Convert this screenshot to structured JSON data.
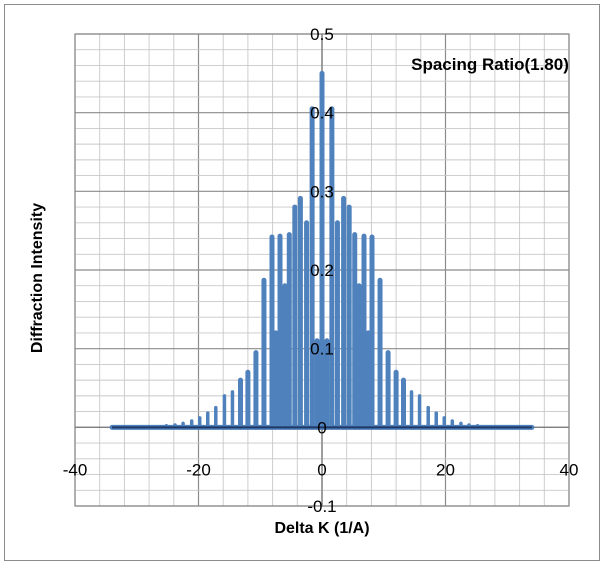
{
  "chart_data": {
    "type": "line",
    "title": "Spacing Ratio(1.80)",
    "xlabel": "Delta K  (1/A)",
    "ylabel": "Diffraction Intensity",
    "xlim": [
      -40,
      40
    ],
    "ylim": [
      -0.1,
      0.5
    ],
    "x_ticks": [
      -40,
      -20,
      0,
      20,
      40
    ],
    "y_ticks": [
      -0.1,
      0,
      0.1,
      0.2,
      0.3,
      0.4,
      0.5
    ],
    "grid": true,
    "legend": "none",
    "series_color": "#4f81bd",
    "baseline_color": "#1f3864",
    "x_range": [
      -34,
      34
    ],
    "peaks": [
      {
        "x": 0.0,
        "y": 0.45
      },
      {
        "x": 1.6,
        "y": 0.405
      },
      {
        "x": -1.6,
        "y": 0.405
      },
      {
        "x": 3.5,
        "y": 0.291
      },
      {
        "x": -3.5,
        "y": 0.291
      },
      {
        "x": 4.4,
        "y": 0.28
      },
      {
        "x": -4.4,
        "y": 0.28
      },
      {
        "x": 5.3,
        "y": 0.245
      },
      {
        "x": -5.3,
        "y": 0.245
      },
      {
        "x": 6.8,
        "y": 0.243
      },
      {
        "x": -6.8,
        "y": 0.243
      },
      {
        "x": 8.1,
        "y": 0.242
      },
      {
        "x": -8.1,
        "y": 0.242
      },
      {
        "x": 2.5,
        "y": 0.26
      },
      {
        "x": -2.5,
        "y": 0.26
      },
      {
        "x": 6.0,
        "y": 0.18
      },
      {
        "x": -6.0,
        "y": 0.18
      },
      {
        "x": 0.8,
        "y": 0.11
      },
      {
        "x": -0.8,
        "y": 0.11
      },
      {
        "x": 9.4,
        "y": 0.187
      },
      {
        "x": -9.4,
        "y": 0.187
      },
      {
        "x": 7.5,
        "y": 0.12
      },
      {
        "x": -7.5,
        "y": 0.12
      },
      {
        "x": 10.7,
        "y": 0.095
      },
      {
        "x": -10.7,
        "y": 0.095
      },
      {
        "x": 12.0,
        "y": 0.07
      },
      {
        "x": -12.0,
        "y": 0.07
      },
      {
        "x": 13.2,
        "y": 0.06
      },
      {
        "x": -13.2,
        "y": 0.06
      },
      {
        "x": 14.5,
        "y": 0.045
      },
      {
        "x": -14.5,
        "y": 0.045
      },
      {
        "x": 15.8,
        "y": 0.04
      },
      {
        "x": -15.8,
        "y": 0.04
      },
      {
        "x": 17.2,
        "y": 0.025
      },
      {
        "x": -17.2,
        "y": 0.025
      },
      {
        "x": 18.5,
        "y": 0.018
      },
      {
        "x": -18.5,
        "y": 0.018
      },
      {
        "x": 19.8,
        "y": 0.012
      },
      {
        "x": -19.8,
        "y": 0.012
      },
      {
        "x": 21.1,
        "y": 0.008
      },
      {
        "x": -21.1,
        "y": 0.008
      },
      {
        "x": 22.5,
        "y": 0.005
      },
      {
        "x": -22.5,
        "y": 0.005
      },
      {
        "x": 23.8,
        "y": 0.003
      },
      {
        "x": -23.8,
        "y": 0.003
      },
      {
        "x": 25.2,
        "y": 0.002
      },
      {
        "x": -25.2,
        "y": 0.002
      }
    ]
  }
}
